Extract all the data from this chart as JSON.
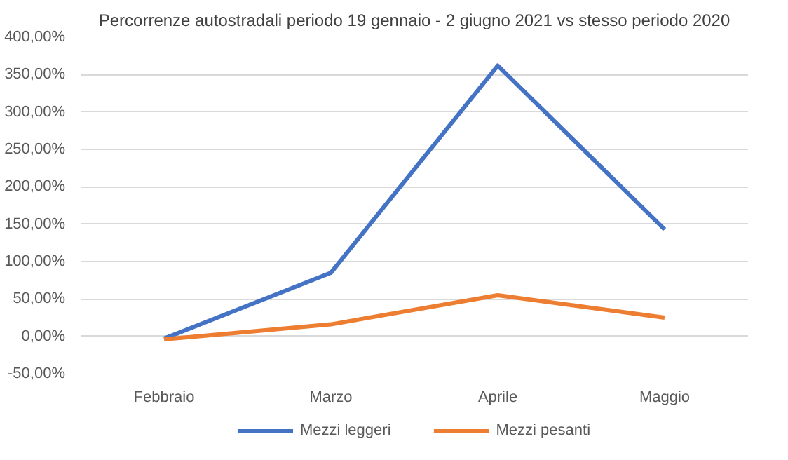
{
  "chart_data": {
    "type": "line",
    "title": "Percorrenze autostradali periodo 19 gennaio - 2 giugno 2021 vs stesso periodo 2020",
    "categories": [
      "Febbraio",
      "Marzo",
      "Aprile",
      "Maggio"
    ],
    "series": [
      {
        "name": "Mezzi leggeri",
        "color": "#4472c4",
        "values": [
          -3,
          85,
          362,
          143
        ]
      },
      {
        "name": "Mezzi pesanti",
        "color": "#ed7d31",
        "values": [
          -4,
          16,
          55,
          25
        ]
      }
    ],
    "ylim": [
      -50,
      400
    ],
    "yticks": [
      {
        "value": -50,
        "label": "-50,00%"
      },
      {
        "value": 0,
        "label": "0,00%"
      },
      {
        "value": 50,
        "label": "50,00%"
      },
      {
        "value": 100,
        "label": "100,00%"
      },
      {
        "value": 150,
        "label": "150,00%"
      },
      {
        "value": 200,
        "label": "200,00%"
      },
      {
        "value": 250,
        "label": "250,00%"
      },
      {
        "value": 300,
        "label": "300,00%"
      },
      {
        "value": 350,
        "label": "350,00%"
      },
      {
        "value": 400,
        "label": "400,00%"
      }
    ],
    "grid": "y",
    "legend": "bottom",
    "marker": "none",
    "line_style": "solid"
  }
}
